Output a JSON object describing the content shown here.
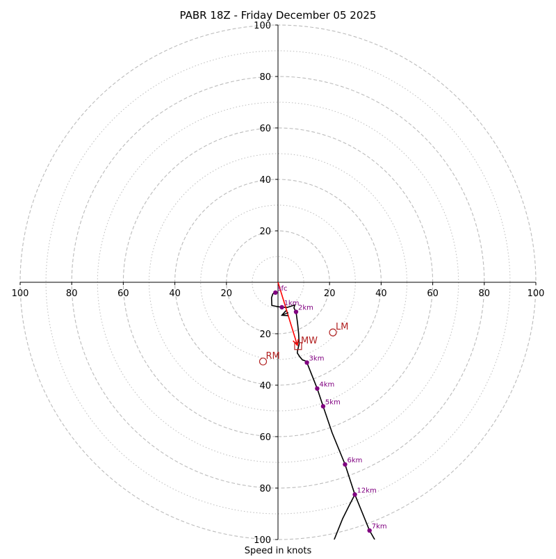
{
  "chart_data": {
    "type": "line",
    "title": "PABR 18Z - Friday December 05 2025",
    "xlabel": "Speed in knots",
    "ylabel": "",
    "xlim": [
      -100,
      100
    ],
    "ylim": [
      -100,
      100
    ],
    "ring_major": [
      20,
      40,
      60,
      80,
      100
    ],
    "ring_minor": [
      10,
      30,
      50,
      70,
      90
    ],
    "x_ticks": [
      -100,
      -80,
      -60,
      -40,
      -20,
      20,
      40,
      60,
      80,
      100
    ],
    "x_tick_labels": [
      "100",
      "80",
      "60",
      "40",
      "20",
      "20",
      "40",
      "60",
      "80",
      "100"
    ],
    "y_ticks": [
      100,
      80,
      60,
      40,
      20,
      -20,
      -40,
      -60,
      -80,
      -100
    ],
    "y_tick_labels": [
      "100",
      "80",
      "60",
      "40",
      "20",
      "20",
      "40",
      "60",
      "80",
      "100"
    ],
    "hodograph_line": {
      "name": "hodograph",
      "color": "#000000",
      "u": [
        -1,
        -2,
        -2.5,
        -2.4,
        -1,
        1.5,
        3.5,
        6.5,
        6.2,
        7,
        7.2,
        7.6,
        8.0,
        8.2,
        7.6,
        7.5,
        8.5,
        9.5,
        10.5,
        11.2,
        13.5,
        15.2,
        17.5,
        21.0,
        26.0,
        29.8,
        27.5,
        25.0,
        21.8
      ],
      "v": [
        -4,
        -4.5,
        -6,
        -9,
        -9.3,
        -9.7,
        -9.8,
        -8.8,
        -10,
        -11.5,
        -13,
        -16,
        -20,
        -24,
        -26.5,
        -27.5,
        -29,
        -30.2,
        -30.5,
        -31.2,
        -37,
        -41.3,
        -48.2,
        -58.5,
        -70.8,
        -82.5,
        -87,
        -92,
        -100
      ]
    },
    "hodograph_branch": {
      "u": [
        29.8,
        35.5,
        37.5
      ],
      "v": [
        -82.5,
        -96.5,
        -100
      ]
    },
    "height_markers": [
      {
        "label": "sfc",
        "u": -1.0,
        "v": -4.0
      },
      {
        "label": "1km",
        "u": 1.5,
        "v": -9.7
      },
      {
        "label": "2km",
        "u": 7.0,
        "v": -11.5
      },
      {
        "label": "3km",
        "u": 11.2,
        "v": -31.2
      },
      {
        "label": "4km",
        "u": 15.2,
        "v": -41.3
      },
      {
        "label": "5km",
        "u": 17.5,
        "v": -48.2
      },
      {
        "label": "6km",
        "u": 26.0,
        "v": -70.8
      },
      {
        "label": "12km",
        "u": 29.8,
        "v": -82.5
      },
      {
        "label": "7km",
        "u": 35.5,
        "v": -96.5
      }
    ],
    "shear_vector": {
      "name": "0-1km shear",
      "color": "#ff0000",
      "from": {
        "u": 0,
        "v": 0
      },
      "to": {
        "u": 7.5,
        "v": -24.5
      }
    },
    "arrow_1km": {
      "color": "#000000",
      "from": {
        "u": 4.0,
        "v": -11.8
      },
      "to": {
        "u": 1.5,
        "v": -12.8
      }
    },
    "storm_motions": [
      {
        "label": "LM",
        "u": 21.3,
        "v": -19.5,
        "symbol": "circle"
      },
      {
        "label": "MW",
        "u": 7.8,
        "v": -24.8,
        "symbol": "square"
      },
      {
        "label": "RM",
        "u": -5.8,
        "v": -30.8,
        "symbol": "circle"
      }
    ],
    "colors": {
      "grid": "#bbbbbb",
      "marker": "#800080",
      "storm_motion": "#b22222",
      "axis": "#000000"
    }
  }
}
